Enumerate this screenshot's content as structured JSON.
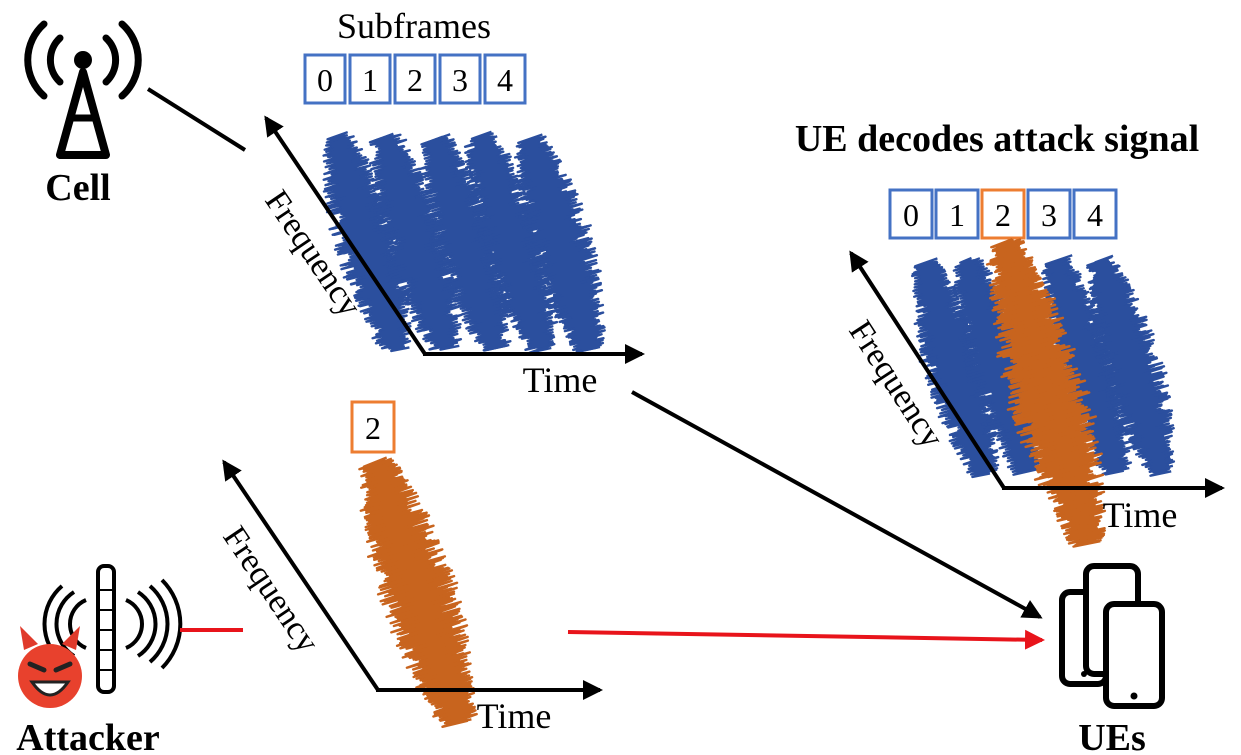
{
  "cell": {
    "label": "Cell",
    "icon": "cell-tower-icon"
  },
  "attacker": {
    "label": "Attacker",
    "icon": "rogue-base-station-icon",
    "face_icon": "devil-face-icon"
  },
  "ues": {
    "label": "UEs",
    "icon": "smartphones-icon"
  },
  "legit_signal": {
    "heading": "Subframes",
    "subframes": [
      "0",
      "1",
      "2",
      "3",
      "4"
    ],
    "y_axis": "Frequency",
    "x_axis": "Time"
  },
  "attack_signal": {
    "subframe": "2",
    "y_axis": "Frequency",
    "x_axis": "Time"
  },
  "decoded_signal": {
    "heading": "UE decodes attack signal",
    "subframes": [
      "0",
      "1",
      "2",
      "3",
      "4"
    ],
    "y_axis": "Frequency",
    "x_axis": "Time"
  },
  "colors": {
    "legit": "#2b4f9e",
    "attack": "#c8641e",
    "box_blue": "#4472c4",
    "box_orange": "#ed7d31",
    "attack_link": "#e8141b",
    "link": "#000000"
  }
}
